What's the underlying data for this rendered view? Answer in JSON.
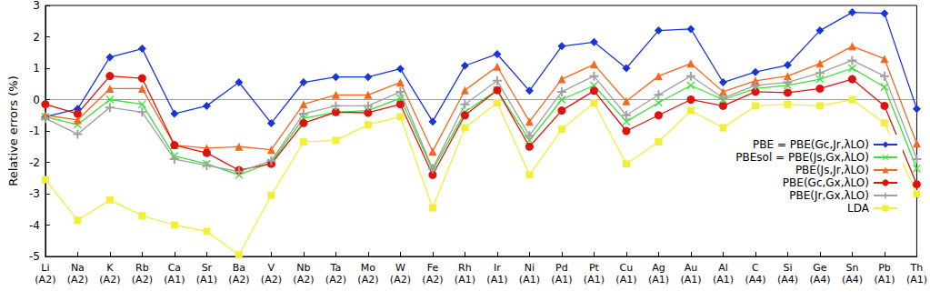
{
  "chart_data": {
    "type": "line",
    "y_label": "Relative errors (%)",
    "categories": [
      "Li\n(A2)",
      "Na\n(A2)",
      "K\n(A2)",
      "Rb\n(A2)",
      "Ca\n(A1)",
      "Sr\n(A1)",
      "Ba\n(A2)",
      "V\n(A2)",
      "Nb\n(A2)",
      "Ta\n(A2)",
      "Mo\n(A2)",
      "W\n(A2)",
      "Fe\n(A2)",
      "Rh\n(A1)",
      "Ir\n(A1)",
      "Ni\n(A1)",
      "Pd\n(A1)",
      "Pt\n(A1)",
      "Cu\n(A1)",
      "Ag\n(A1)",
      "Au\n(A1)",
      "Al\n(A1)",
      "C\n(A4)",
      "Si\n(A4)",
      "Ge\n(A4)",
      "Sn\n(A4)",
      "Pb\n(A1)",
      "Th\n(A1)"
    ],
    "series": [
      {
        "name": "PBE = PBE(Gc,Jr,λLO)",
        "color": "#1a35d6",
        "marker": "diamond",
        "values": [
          -0.55,
          -0.3,
          1.35,
          1.62,
          -0.45,
          -0.2,
          0.55,
          -0.75,
          0.55,
          0.72,
          0.72,
          0.98,
          -0.7,
          1.08,
          1.45,
          0.28,
          1.7,
          1.83,
          1.0,
          2.2,
          2.25,
          0.55,
          0.88,
          1.1,
          2.2,
          2.78,
          2.75,
          -0.3
        ]
      },
      {
        "name": "PBEsol = PBE(Js,Gx,λLO)",
        "color": "#3ae03a",
        "marker": "x",
        "values": [
          -0.55,
          -0.8,
          0.0,
          -0.15,
          -1.8,
          -2.05,
          -2.4,
          -2.0,
          -0.6,
          -0.4,
          -0.35,
          0.05,
          -2.25,
          -0.4,
          0.3,
          -1.3,
          0.0,
          0.45,
          -0.7,
          -0.1,
          0.45,
          0.0,
          0.35,
          0.45,
          0.65,
          1.0,
          0.4,
          -2.2
        ]
      },
      {
        "name": "PBE(Js,Jr,λLO)",
        "color": "#f2681e",
        "marker": "triangle",
        "values": [
          -0.5,
          -0.65,
          0.35,
          0.35,
          -1.45,
          -1.55,
          -1.5,
          -1.6,
          -0.15,
          0.15,
          0.15,
          0.55,
          -1.65,
          0.3,
          1.05,
          -0.7,
          0.65,
          1.12,
          -0.05,
          0.75,
          1.15,
          0.25,
          0.6,
          0.75,
          1.15,
          1.7,
          1.3,
          -1.4
        ]
      },
      {
        "name": "PBE(Gc,Gx,λLO)",
        "color": "#e0120f",
        "marker": "circle",
        "values": [
          -0.15,
          -0.45,
          0.75,
          0.68,
          -1.45,
          -1.7,
          -2.25,
          -2.05,
          -0.75,
          -0.4,
          -0.42,
          -0.15,
          -2.4,
          -0.5,
          0.3,
          -1.5,
          -0.35,
          0.28,
          -1.0,
          -0.5,
          0.0,
          -0.2,
          0.25,
          0.22,
          0.35,
          0.65,
          -0.2,
          -2.7
        ]
      },
      {
        "name": "PBE(Jr,Gx,λLO)",
        "color": "#a0a0a0",
        "marker": "plus",
        "values": [
          -0.6,
          -1.1,
          -0.25,
          -0.4,
          -1.9,
          -2.1,
          -2.3,
          -1.95,
          -0.45,
          -0.2,
          -0.2,
          0.25,
          -2.2,
          -0.15,
          0.6,
          -1.15,
          0.25,
          0.75,
          -0.5,
          0.15,
          0.75,
          0.05,
          0.45,
          0.55,
          0.85,
          1.25,
          0.75,
          -1.9
        ]
      },
      {
        "name": "LDA",
        "color": "#f2ee3a",
        "marker": "square",
        "values": [
          -2.55,
          -3.85,
          -3.2,
          -3.7,
          -4.0,
          -4.2,
          -4.95,
          -3.05,
          -1.35,
          -1.3,
          -0.8,
          -0.55,
          -3.45,
          -0.9,
          -0.1,
          -2.4,
          -0.95,
          -0.1,
          -2.05,
          -1.35,
          -0.35,
          -0.9,
          -0.2,
          -0.15,
          -0.2,
          0.0,
          -0.75,
          -3.0
        ]
      }
    ],
    "ylim": [
      -5,
      3
    ],
    "yticks": [
      -5,
      -4,
      -3,
      -2,
      -1,
      0,
      1,
      2,
      3
    ],
    "grid": false,
    "legend": "lower right"
  }
}
